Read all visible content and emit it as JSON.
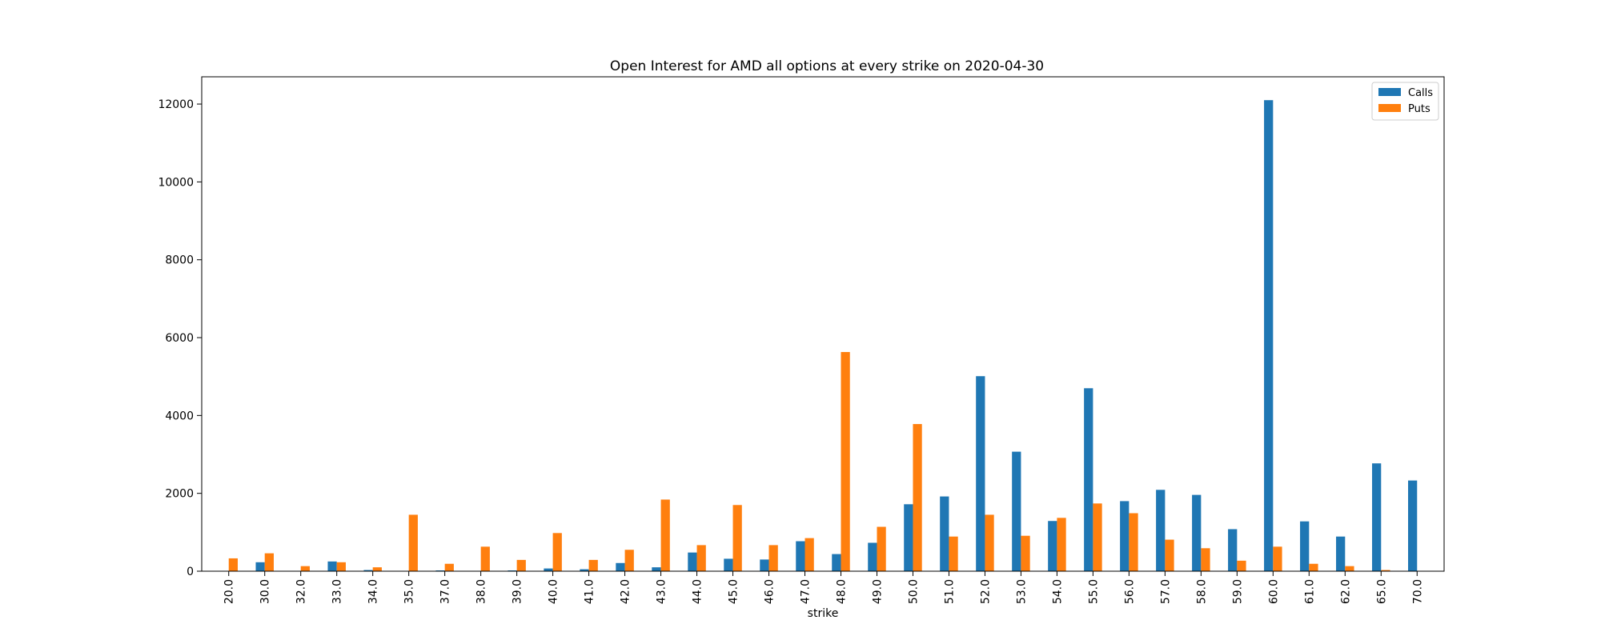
{
  "chart_data": {
    "type": "bar",
    "title": "Open Interest for AMD all options at every strike on 2020-04-30",
    "xlabel": "strike",
    "ylabel": "",
    "ylim": [
      0,
      12700
    ],
    "yticks": [
      0,
      2000,
      4000,
      6000,
      8000,
      10000,
      12000
    ],
    "grid": false,
    "legend_position": "top-right",
    "categories": [
      "20.0",
      "30.0",
      "32.0",
      "33.0",
      "34.0",
      "35.0",
      "37.0",
      "38.0",
      "39.0",
      "40.0",
      "41.0",
      "42.0",
      "43.0",
      "44.0",
      "45.0",
      "46.0",
      "47.0",
      "48.0",
      "49.0",
      "50.0",
      "51.0",
      "52.0",
      "53.0",
      "54.0",
      "55.0",
      "56.0",
      "57.0",
      "58.0",
      "59.0",
      "60.0",
      "61.0",
      "62.0",
      "65.0",
      "70.0"
    ],
    "series": [
      {
        "name": "Calls",
        "color": "#1f77b4",
        "values": [
          0,
          230,
          0,
          250,
          30,
          0,
          20,
          0,
          20,
          70,
          50,
          210,
          100,
          480,
          320,
          300,
          770,
          440,
          730,
          1720,
          1920,
          5010,
          3070,
          1290,
          4700,
          1800,
          2090,
          1960,
          1080,
          12100,
          1280,
          890,
          2770,
          2330
        ]
      },
      {
        "name": "Puts",
        "color": "#ff7f0e",
        "values": [
          330,
          460,
          130,
          230,
          100,
          1450,
          190,
          630,
          290,
          980,
          290,
          550,
          1840,
          670,
          1700,
          670,
          850,
          5630,
          1140,
          3780,
          890,
          1450,
          910,
          1370,
          1740,
          1490,
          810,
          590,
          270,
          630,
          190,
          130,
          30,
          10
        ]
      }
    ]
  }
}
